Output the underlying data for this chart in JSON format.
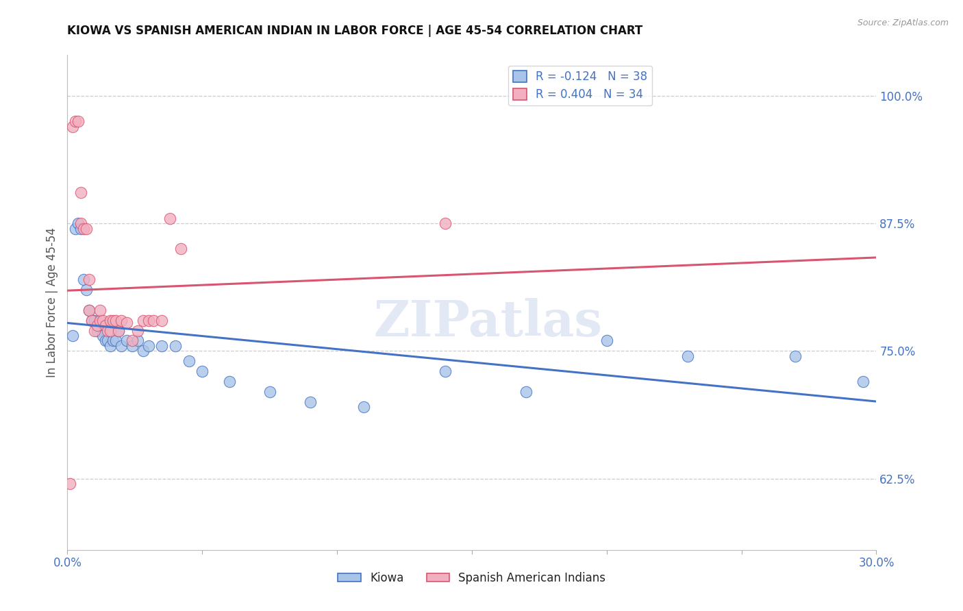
{
  "title": "KIOWA VS SPANISH AMERICAN INDIAN IN LABOR FORCE | AGE 45-54 CORRELATION CHART",
  "source": "Source: ZipAtlas.com",
  "ylabel": "In Labor Force | Age 45-54",
  "xlim": [
    0.0,
    0.3
  ],
  "ylim": [
    0.555,
    1.04
  ],
  "xticks": [
    0.0,
    0.05,
    0.1,
    0.15,
    0.2,
    0.25,
    0.3
  ],
  "xticklabels": [
    "0.0%",
    "",
    "",
    "",
    "",
    "",
    "30.0%"
  ],
  "yticks_right": [
    1.0,
    0.875,
    0.75,
    0.625
  ],
  "ytick_right_labels": [
    "100.0%",
    "87.5%",
    "75.0%",
    "62.5%"
  ],
  "kiowa_color": "#a8c4e8",
  "spanish_color": "#f2afc0",
  "kiowa_line_color": "#4472c4",
  "spanish_line_color": "#d9546e",
  "legend_r_kiowa": "R = -0.124",
  "legend_n_kiowa": "N = 38",
  "legend_r_spanish": "R = 0.404",
  "legend_n_spanish": "N = 34",
  "kiowa_label": "Kiowa",
  "spanish_label": "Spanish American Indians",
  "watermark": "ZIPatlas",
  "background_color": "#ffffff",
  "grid_color": "#cccccc",
  "axis_color": "#4472c4",
  "title_color": "#111111",
  "kiowa_x": [
    0.002,
    0.003,
    0.004,
    0.005,
    0.006,
    0.007,
    0.008,
    0.009,
    0.01,
    0.011,
    0.012,
    0.013,
    0.014,
    0.015,
    0.016,
    0.017,
    0.018,
    0.019,
    0.02,
    0.022,
    0.024,
    0.026,
    0.028,
    0.03,
    0.035,
    0.04,
    0.045,
    0.05,
    0.06,
    0.075,
    0.09,
    0.11,
    0.14,
    0.17,
    0.2,
    0.23,
    0.27,
    0.295
  ],
  "kiowa_y": [
    0.765,
    0.87,
    0.875,
    0.87,
    0.82,
    0.81,
    0.79,
    0.78,
    0.78,
    0.77,
    0.78,
    0.765,
    0.76,
    0.76,
    0.755,
    0.76,
    0.76,
    0.77,
    0.755,
    0.76,
    0.755,
    0.76,
    0.75,
    0.755,
    0.755,
    0.755,
    0.74,
    0.73,
    0.72,
    0.71,
    0.7,
    0.695,
    0.73,
    0.71,
    0.76,
    0.745,
    0.745,
    0.72
  ],
  "spanish_x": [
    0.001,
    0.002,
    0.003,
    0.004,
    0.005,
    0.005,
    0.006,
    0.007,
    0.008,
    0.008,
    0.009,
    0.01,
    0.011,
    0.012,
    0.012,
    0.013,
    0.014,
    0.015,
    0.016,
    0.016,
    0.017,
    0.018,
    0.019,
    0.02,
    0.022,
    0.024,
    0.026,
    0.028,
    0.03,
    0.032,
    0.035,
    0.038,
    0.042,
    0.14
  ],
  "spanish_y": [
    0.62,
    0.97,
    0.975,
    0.975,
    0.875,
    0.905,
    0.87,
    0.87,
    0.82,
    0.79,
    0.78,
    0.77,
    0.775,
    0.78,
    0.79,
    0.78,
    0.775,
    0.77,
    0.77,
    0.78,
    0.78,
    0.78,
    0.77,
    0.78,
    0.778,
    0.76,
    0.77,
    0.78,
    0.78,
    0.78,
    0.78,
    0.88,
    0.85,
    0.875
  ]
}
